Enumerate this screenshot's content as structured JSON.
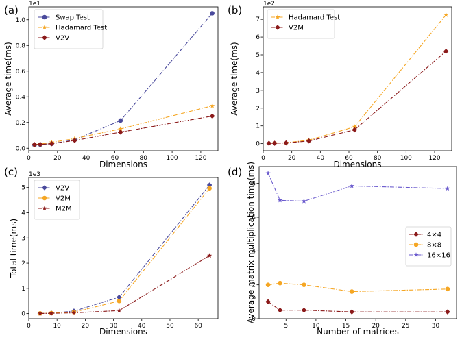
{
  "figure": {
    "panel_labels": [
      "(a)",
      "(b)",
      "(c)",
      "(d)"
    ]
  },
  "chart_data": [
    {
      "panel": "(a)",
      "type": "line",
      "xlabel": "Dimensions",
      "ylabel": "Average time(ms)",
      "multiplier": "1e1",
      "xlim": [
        0,
        132
      ],
      "ylim": [
        -0.2,
        11.0
      ],
      "xticks": [
        0,
        20,
        40,
        60,
        80,
        100,
        120
      ],
      "yticks": [
        0.0,
        2.0,
        4.0,
        6.0,
        8.0,
        10.0
      ],
      "ytick_labels": [
        "0.0",
        "0.2",
        "0.4",
        "0.6",
        "0.8",
        "1.0"
      ],
      "legend": "top-left",
      "series": [
        {
          "name": "Swap Test",
          "color": "#4a4a9c",
          "marker": "circle",
          "x": [
            4,
            8,
            16,
            32,
            64,
            128
          ],
          "y": [
            0.25,
            0.28,
            0.35,
            0.65,
            2.15,
            10.5
          ]
        },
        {
          "name": "Hadamard Test",
          "color": "#f5a623",
          "marker": "star",
          "x": [
            4,
            8,
            16,
            32,
            64,
            128
          ],
          "y": [
            0.28,
            0.32,
            0.45,
            0.75,
            1.5,
            3.3
          ]
        },
        {
          "name": "V2V",
          "color": "#8b1a1a",
          "marker": "diamond",
          "x": [
            4,
            8,
            16,
            32,
            64,
            128
          ],
          "y": [
            0.28,
            0.3,
            0.35,
            0.6,
            1.25,
            2.5
          ]
        }
      ]
    },
    {
      "panel": "(b)",
      "type": "line",
      "xlabel": "Dimensions",
      "ylabel": "Average time(ms)",
      "multiplier": "1e2",
      "xlim": [
        0,
        132
      ],
      "ylim": [
        -0.4,
        7.7
      ],
      "xticks": [
        0,
        20,
        40,
        60,
        80,
        100,
        120
      ],
      "yticks": [
        0,
        1,
        2,
        3,
        4,
        5,
        6,
        7
      ],
      "ytick_labels": [
        "0",
        "1",
        "2",
        "3",
        "4",
        "5",
        "6",
        "7"
      ],
      "legend": "top-left",
      "series": [
        {
          "name": "Hadamard Test",
          "color": "#f5a623",
          "marker": "star",
          "x": [
            4,
            8,
            16,
            32,
            64,
            128
          ],
          "y": [
            0.02,
            0.03,
            0.05,
            0.2,
            0.95,
            7.25
          ]
        },
        {
          "name": "V2M",
          "color": "#8b1a1a",
          "marker": "diamond",
          "x": [
            4,
            8,
            16,
            32,
            64,
            128
          ],
          "y": [
            0.02,
            0.02,
            0.04,
            0.15,
            0.78,
            5.2
          ]
        }
      ]
    },
    {
      "panel": "(c)",
      "type": "line",
      "xlabel": "Dimensions",
      "ylabel": "Total time(ms)",
      "multiplier": "1e3",
      "xlim": [
        0,
        67
      ],
      "ylim": [
        -0.2,
        5.4
      ],
      "xticks": [
        0,
        10,
        20,
        30,
        40,
        50,
        60
      ],
      "yticks": [
        0,
        1,
        2,
        3,
        4,
        5
      ],
      "ytick_labels": [
        "0",
        "1",
        "2",
        "3",
        "4",
        "5"
      ],
      "legend": "top-left",
      "series": [
        {
          "name": "V2V",
          "color": "#4a4a9c",
          "marker": "diamond",
          "x": [
            4,
            8,
            16,
            32,
            64
          ],
          "y": [
            0.01,
            0.02,
            0.1,
            0.65,
            5.1
          ]
        },
        {
          "name": "V2M",
          "color": "#f5a623",
          "marker": "circle",
          "x": [
            4,
            8,
            16,
            32,
            64
          ],
          "y": [
            0.01,
            0.02,
            0.06,
            0.5,
            4.97
          ]
        },
        {
          "name": "M2M",
          "color": "#8b1a1a",
          "marker": "star",
          "x": [
            4,
            8,
            16,
            32,
            64
          ],
          "y": [
            0.005,
            0.01,
            0.03,
            0.12,
            2.3
          ]
        }
      ]
    },
    {
      "panel": "(d)",
      "type": "line",
      "xlabel": "Number of matrices",
      "ylabel": "Average matrix multiplication time(ms)",
      "multiplier": "",
      "xlim": [
        0.5,
        33.5
      ],
      "ylim": [
        0,
        9.0
      ],
      "xticks": [
        5,
        10,
        15,
        20,
        25,
        30
      ],
      "yticks": [
        0,
        2,
        4,
        6,
        8
      ],
      "ytick_labels": [
        "0",
        "2",
        "4",
        "6",
        "8"
      ],
      "legend": "center-right",
      "series": [
        {
          "name": "4×4",
          "color": "#8b1a1a",
          "marker": "diamond",
          "x": [
            2,
            4,
            8,
            16,
            32
          ],
          "y": [
            1.0,
            0.5,
            0.5,
            0.4,
            0.4
          ]
        },
        {
          "name": "8×8",
          "color": "#f5a623",
          "marker": "circle",
          "x": [
            2,
            4,
            8,
            16,
            32
          ],
          "y": [
            2.0,
            2.1,
            2.0,
            1.6,
            1.75
          ]
        },
        {
          "name": "16×16",
          "color": "#6a5acd",
          "marker": "star",
          "x": [
            2,
            4,
            8,
            16,
            32
          ],
          "y": [
            8.6,
            7.0,
            6.95,
            7.85,
            7.7
          ]
        }
      ]
    }
  ]
}
